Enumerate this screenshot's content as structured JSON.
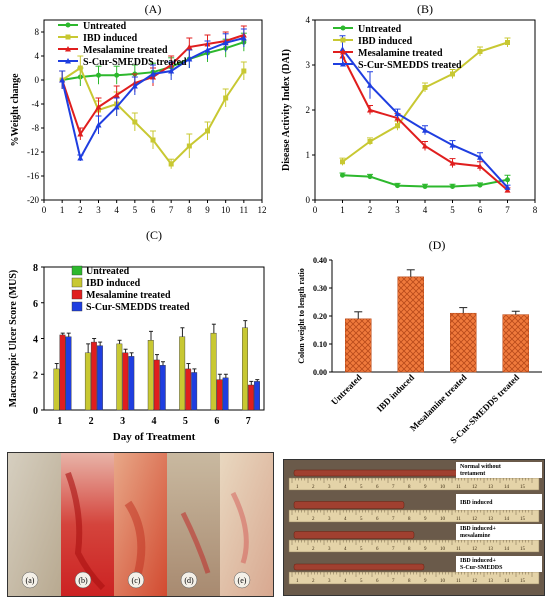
{
  "panels": {
    "A": "(A)",
    "B": "(B)",
    "C": "(C)",
    "D": "(D)"
  },
  "colors": {
    "untreated": "#2db82d",
    "ibd": "#c8c832",
    "mesalamine": "#e01e1e",
    "scur": "#1f3ee0",
    "bar_orange": "#f07a3c"
  },
  "chart_data": [
    {
      "id": "A",
      "type": "line",
      "title": "(A)",
      "xlabel": "Day of study",
      "ylabel": "%Weight change",
      "xlim": [
        0,
        12
      ],
      "ylim": [
        -20,
        10
      ],
      "xticks": [
        "0",
        "1",
        "2",
        "3",
        "4",
        "5",
        "6",
        "7",
        "8",
        "9",
        "10",
        "11",
        "12"
      ],
      "yticks": [
        "8",
        "4",
        "0",
        "-4",
        "-8",
        "-12",
        "-16",
        "-20"
      ],
      "x": [
        1,
        2,
        3,
        4,
        5,
        6,
        7,
        8,
        9,
        10,
        11
      ],
      "legend_position": "top-left",
      "series": [
        {
          "name": "Untreated",
          "color_key": "untreated",
          "values": [
            0,
            0.5,
            0.8,
            0.8,
            1.0,
            1.3,
            2.2,
            3.5,
            4.5,
            5.3,
            6.3
          ],
          "err": [
            1.5,
            1.5,
            1.5,
            1.5,
            1.5,
            1.5,
            1.5,
            1.5,
            1.5,
            1.5,
            1.5
          ]
        },
        {
          "name": "IBD induced",
          "color_key": "ibd",
          "values": [
            0,
            2,
            -5,
            -4,
            -7,
            -10,
            -14,
            -11,
            -8.5,
            -3,
            1.5
          ],
          "err": [
            1.5,
            2,
            1.5,
            2,
            1.5,
            1.5,
            0.8,
            2,
            1.5,
            1.5,
            1.5
          ]
        },
        {
          "name": "Mesalamine treated",
          "color_key": "mesalamine",
          "values": [
            0,
            -9,
            -4.5,
            -2.5,
            -0.5,
            0.5,
            2.5,
            5.5,
            6,
            6.5,
            7.5
          ],
          "err": [
            1.5,
            1,
            1.5,
            1.5,
            1.5,
            1.5,
            1.5,
            1.5,
            1.5,
            1.5,
            1.5
          ]
        },
        {
          "name": "S-Cur-SMEDDS treated",
          "color_key": "scur",
          "values": [
            0,
            -13,
            -7.5,
            -4.5,
            -1,
            1,
            1.5,
            3.5,
            5,
            6.2,
            7
          ],
          "err": [
            1.5,
            0.5,
            1.5,
            1.5,
            1.5,
            1.5,
            1.5,
            1.5,
            1.5,
            1.5,
            1.5
          ]
        }
      ]
    },
    {
      "id": "B",
      "type": "line",
      "title": "(B)",
      "xlabel": "Day of study",
      "ylabel": "Disease Activity Index (DAI)",
      "xlim": [
        0,
        8
      ],
      "ylim": [
        0,
        4
      ],
      "xticks": [
        "0",
        "1",
        "2",
        "3",
        "4",
        "5",
        "6",
        "7",
        "8"
      ],
      "yticks": [
        "0",
        "1",
        "2",
        "3",
        "4"
      ],
      "x": [
        1,
        2,
        3,
        4,
        5,
        6,
        7
      ],
      "legend_position": "top-right",
      "series": [
        {
          "name": "Untreated",
          "color_key": "untreated",
          "values": [
            0.55,
            0.52,
            0.32,
            0.3,
            0.3,
            0.33,
            0.45
          ],
          "err": [
            0.05,
            0.05,
            0.05,
            0.05,
            0.05,
            0.05,
            0.1
          ]
        },
        {
          "name": "IBD induced",
          "color_key": "ibd",
          "values": [
            0.85,
            1.3,
            1.65,
            2.5,
            2.8,
            3.3,
            3.5
          ],
          "err": [
            0.08,
            0.08,
            0.1,
            0.1,
            0.1,
            0.1,
            0.1
          ]
        },
        {
          "name": "Mesalamine treated",
          "color_key": "mesalamine",
          "values": [
            3.2,
            2.0,
            1.82,
            1.2,
            0.82,
            0.75,
            0.22
          ],
          "err": [
            0.1,
            0.1,
            0.1,
            0.1,
            0.1,
            0.1,
            0.05
          ]
        },
        {
          "name": "S-Cur-SMEDDS treated",
          "color_key": "scur",
          "values": [
            3.35,
            2.55,
            1.92,
            1.55,
            1.22,
            0.95,
            0.28
          ],
          "err": [
            0.3,
            0.3,
            0.1,
            0.1,
            0.1,
            0.1,
            0.05
          ]
        }
      ]
    },
    {
      "id": "C",
      "type": "bar",
      "title": "(C)",
      "xlabel": "Day of Treatment",
      "ylabel": "Macroscopic Ulcer Score (MUS)",
      "ylim": [
        0,
        8
      ],
      "yticks": [
        "0",
        "2",
        "4",
        "6",
        "8"
      ],
      "categories": [
        "1",
        "2",
        "3",
        "4",
        "5",
        "6",
        "7"
      ],
      "legend_position": "top-left",
      "series": [
        {
          "name": "Untreated",
          "color_key": "untreated",
          "values": [
            0,
            0,
            0,
            0,
            0,
            0,
            0
          ],
          "err": [
            0,
            0,
            0,
            0,
            0,
            0,
            0
          ]
        },
        {
          "name": "IBD induced",
          "color_key": "ibd",
          "values": [
            2.3,
            3.2,
            3.7,
            3.9,
            4.1,
            4.3,
            4.6
          ],
          "err": [
            0.3,
            0.5,
            0.2,
            0.5,
            0.5,
            0.5,
            0.4
          ]
        },
        {
          "name": "Mesalamine treated",
          "color_key": "mesalamine",
          "values": [
            4.2,
            3.8,
            3.2,
            2.8,
            2.3,
            1.7,
            1.4
          ],
          "err": [
            0.1,
            0.2,
            0.2,
            0.3,
            0.3,
            0.3,
            0.2
          ]
        },
        {
          "name": "S-Cur-SMEDDS treated",
          "color_key": "scur",
          "values": [
            4.1,
            3.6,
            3.0,
            2.5,
            2.1,
            1.8,
            1.6
          ],
          "err": [
            0.2,
            0.2,
            0.2,
            0.2,
            0.2,
            0.2,
            0.1
          ]
        }
      ]
    },
    {
      "id": "D",
      "type": "bar",
      "title": "(D)",
      "xlabel": "",
      "ylabel": "Colon weight to length ratio",
      "ylim": [
        0,
        0.4
      ],
      "yticks": [
        "0.00",
        "0.10",
        "0.20",
        "0.30",
        "0.40"
      ],
      "categories": [
        "Untreated",
        "IBD induced",
        "Mesalamine treated",
        "S-Cur-SMEDDS treated"
      ],
      "series": [
        {
          "name": "",
          "color_key": "bar_orange",
          "values": [
            0.19,
            0.34,
            0.21,
            0.205
          ],
          "err": [
            0.025,
            0.025,
            0.02,
            0.012
          ]
        }
      ]
    }
  ],
  "photos": {
    "labels": [
      "(a)",
      "(b)",
      "(c)",
      "(d)",
      "(e)"
    ]
  },
  "rulers": {
    "labels": [
      "Normal without tretament",
      "IBD induced",
      "IBD induced+ mesalamine",
      "IBD induced+ S-Cur-SMEDDS"
    ],
    "ticks": [
      "1",
      "2",
      "3",
      "4",
      "5",
      "6",
      "7",
      "8",
      "9",
      "10",
      "11",
      "12",
      "13",
      "14",
      "15"
    ]
  }
}
